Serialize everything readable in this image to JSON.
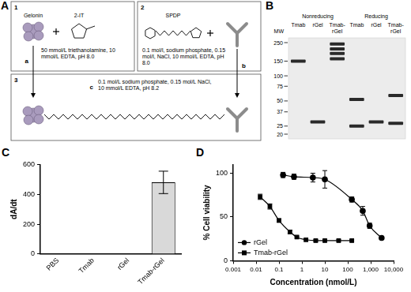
{
  "panels": {
    "A": {
      "panel": "A",
      "steps": [
        {
          "number": "1",
          "reactants": [
            "Gelonin",
            "2-IT"
          ],
          "arrow": "a",
          "conditions": "50 mmol/L triethanolamine, 10 mmol/L EDTA, pH 8.0"
        },
        {
          "number": "2",
          "reactants": [
            "SPDP"
          ],
          "arrow": "b",
          "conditions": "0.1 mol/l, sodium phosphate, 0.15 mol/l, NaCl, 10 mmol/L EDTA, pH 8.0"
        },
        {
          "number": "3",
          "arrow": "c",
          "conditions": "0.1 mol/L sodium phosphate, 0.15 mol/L NaCl, 10 mmol/L EDTA, pH 8.2"
        }
      ]
    },
    "B": {
      "panel": "B",
      "mw_label": "MW",
      "mw_markers": [
        250,
        150,
        100,
        75,
        50,
        37,
        25,
        20
      ],
      "groups": [
        {
          "name": "Nonreducing",
          "lanes": [
            {
              "name": "Tmab",
              "bands": [
                150
              ]
            },
            {
              "name": "rGel",
              "bands": [
                28
              ]
            },
            {
              "name": "Tmab-rGel",
              "bands": [
                240,
                210,
                185,
                160
              ]
            }
          ]
        },
        {
          "name": "Reducing",
          "lanes": [
            {
              "name": "Tmab",
              "bands": [
                52,
                25
              ]
            },
            {
              "name": "rGel",
              "bands": [
                28
              ]
            },
            {
              "name": "Tmab-rGel",
              "bands": [
                58,
                27
              ]
            }
          ]
        }
      ]
    }
  },
  "chart_data": [
    {
      "panel": "C",
      "type": "bar",
      "categories": [
        "PBS",
        "Tmab",
        "rGel",
        "Tmab-rGel"
      ],
      "values": [
        0,
        0,
        0,
        480
      ],
      "errors": [
        null,
        null,
        null,
        75
      ],
      "y_label": "dA/dt",
      "ylim": [
        0,
        600
      ],
      "yticks": [
        0,
        200,
        400,
        600
      ],
      "color": "#d9d9d9",
      "grid": false
    },
    {
      "panel": "D",
      "type": "scatter",
      "x_label": "Concentration (nmol/L)",
      "y_label": "% Cell viability",
      "log": "x",
      "xlim": [
        0.001,
        10000
      ],
      "xticks": [
        0.001,
        0.01,
        0.1,
        1,
        10,
        100,
        {
          "value": 1000,
          "label": "1,000"
        },
        {
          "value": 10000,
          "label": "10,000"
        }
      ],
      "ylim": [
        0,
        110
      ],
      "yticks": [
        0,
        50,
        100
      ],
      "grid": false,
      "legend": "lower left",
      "series": [
        {
          "name": "rGel",
          "color": "#000000",
          "marker": "circle",
          "line_style": "solid",
          "x": [
            0.15,
            0.45,
            3,
            10,
            150,
            450,
            900,
            3000
          ],
          "values": [
            98,
            96,
            95,
            93,
            70,
            57,
            40,
            26
          ],
          "errors": [
            3,
            3,
            5,
            10,
            3,
            5,
            3,
            1
          ]
        },
        {
          "name": "Tmab-rGel",
          "color": "#000000",
          "marker": "square",
          "line_style": "solid",
          "x": [
            0.015,
            0.04,
            0.1,
            0.3,
            0.6,
            1.5,
            4,
            10,
            40,
            150
          ],
          "values": [
            73,
            62,
            46,
            33,
            27,
            24,
            23,
            23,
            23,
            23
          ],
          "errors": [
            3,
            3,
            2,
            2,
            1,
            1,
            1,
            1,
            1,
            1
          ]
        }
      ]
    }
  ]
}
